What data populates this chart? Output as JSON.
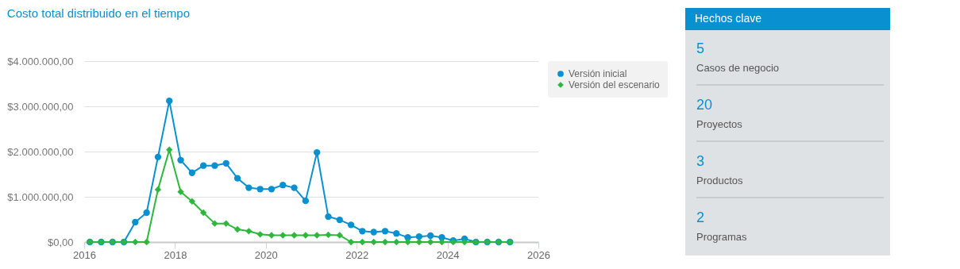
{
  "chart_data": [
    {
      "type": "line",
      "title": "Costo total distribuido en el tiempo",
      "x": [
        2016.125,
        2016.375,
        2016.625,
        2016.875,
        2017.125,
        2017.375,
        2017.625,
        2017.875,
        2018.125,
        2018.375,
        2018.625,
        2018.875,
        2019.125,
        2019.375,
        2019.625,
        2019.875,
        2020.125,
        2020.375,
        2020.625,
        2020.875,
        2021.125,
        2021.375,
        2021.625,
        2021.875,
        2022.125,
        2022.375,
        2022.625,
        2022.875,
        2023.125,
        2023.375,
        2023.625,
        2023.875,
        2024.125,
        2024.375,
        2024.625,
        2024.875,
        2025.125,
        2025.375
      ],
      "xlim": [
        2016,
        2026
      ],
      "xticks": [
        2016,
        2018,
        2020,
        2022,
        2024,
        2026
      ],
      "ylim": [
        0,
        4000000
      ],
      "yticks": [
        {
          "value": 0,
          "label": "$0,00"
        },
        {
          "value": 1000000,
          "label": "$1.000.000,00"
        },
        {
          "value": 2000000,
          "label": "$2.000.000,00"
        },
        {
          "value": 3000000,
          "label": "$3.000.000,00"
        },
        {
          "value": 4000000,
          "label": "$4.000.000,00"
        }
      ],
      "grid": "y",
      "legend": "right",
      "line_style": "solid",
      "series": [
        {
          "name": "Versión inicial",
          "color": "#0990d1",
          "marker": "circle",
          "values": [
            0,
            0,
            0,
            0,
            440000,
            650000,
            1880000,
            3120000,
            1810000,
            1530000,
            1690000,
            1690000,
            1740000,
            1410000,
            1200000,
            1170000,
            1170000,
            1260000,
            1200000,
            910000,
            1980000,
            560000,
            490000,
            380000,
            240000,
            220000,
            240000,
            190000,
            100000,
            120000,
            140000,
            100000,
            30000,
            70000,
            0,
            0,
            0,
            0
          ]
        },
        {
          "name": "Versión del escenario",
          "color": "#2db83d",
          "marker": "diamond",
          "values": [
            0,
            0,
            0,
            0,
            0,
            0,
            1160000,
            2040000,
            1110000,
            900000,
            650000,
            410000,
            410000,
            280000,
            240000,
            170000,
            150000,
            150000,
            150000,
            150000,
            150000,
            160000,
            150000,
            0,
            0,
            0,
            0,
            0,
            0,
            0,
            0,
            0,
            0,
            0,
            0,
            0,
            0,
            0
          ]
        }
      ]
    },
    {
      "type": "other",
      "title": "Hechos clave",
      "annotations": [
        "5",
        "Casos de negocio",
        "20",
        "Proyectos",
        "3",
        "Productos",
        "2",
        "Programas"
      ]
    }
  ]
}
